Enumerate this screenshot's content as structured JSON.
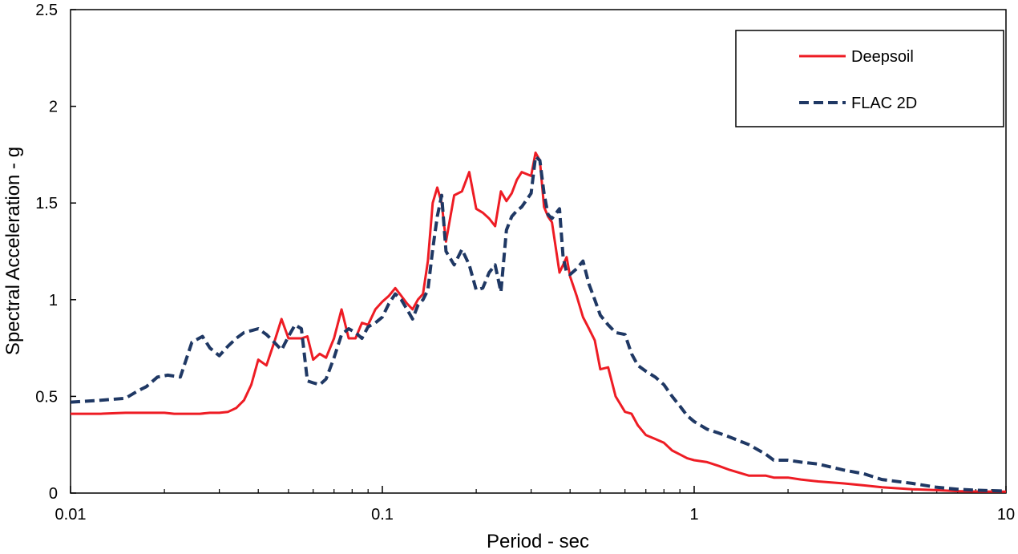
{
  "chart_data": {
    "type": "line",
    "title": "",
    "xlabel": "Period - sec",
    "ylabel": "Spectral Acceleration - g",
    "xscale": "log",
    "xlim": [
      0.01,
      10
    ],
    "ylim": [
      0,
      2.5
    ],
    "x_ticks": [
      0.01,
      0.1,
      1,
      10
    ],
    "x_tick_labels": [
      "0.01",
      "0.1",
      "1",
      "10"
    ],
    "y_ticks": [
      0,
      0.5,
      1,
      1.5,
      2,
      2.5
    ],
    "y_tick_labels": [
      "0",
      "0.5",
      "1",
      "1.5",
      "2",
      "2.5"
    ],
    "grid": false,
    "legend_position": "top-right",
    "series": [
      {
        "name": "Deepsoil",
        "color": "#ee1c24",
        "style": "solid",
        "x": [
          0.01,
          0.0125,
          0.015,
          0.0175,
          0.02,
          0.0215,
          0.023,
          0.0245,
          0.026,
          0.028,
          0.03,
          0.032,
          0.034,
          0.036,
          0.038,
          0.04,
          0.0425,
          0.045,
          0.0475,
          0.05,
          0.0525,
          0.055,
          0.0575,
          0.06,
          0.063,
          0.066,
          0.07,
          0.074,
          0.078,
          0.082,
          0.086,
          0.09,
          0.095,
          0.1,
          0.105,
          0.11,
          0.115,
          0.12,
          0.125,
          0.13,
          0.135,
          0.14,
          0.145,
          0.15,
          0.155,
          0.16,
          0.17,
          0.18,
          0.19,
          0.2,
          0.21,
          0.22,
          0.23,
          0.24,
          0.25,
          0.26,
          0.27,
          0.28,
          0.3,
          0.31,
          0.32,
          0.33,
          0.34,
          0.35,
          0.37,
          0.38,
          0.39,
          0.4,
          0.42,
          0.44,
          0.46,
          0.48,
          0.5,
          0.53,
          0.56,
          0.6,
          0.63,
          0.66,
          0.7,
          0.75,
          0.8,
          0.85,
          0.9,
          0.95,
          1.0,
          1.1,
          1.2,
          1.3,
          1.5,
          1.7,
          1.8,
          2.0,
          2.2,
          2.5,
          3.0,
          3.5,
          4.0,
          5.0,
          6.0,
          7.0,
          8.0,
          10.0
        ],
        "y": [
          0.41,
          0.41,
          0.415,
          0.415,
          0.415,
          0.41,
          0.41,
          0.41,
          0.41,
          0.415,
          0.415,
          0.42,
          0.44,
          0.48,
          0.56,
          0.69,
          0.66,
          0.78,
          0.9,
          0.8,
          0.8,
          0.8,
          0.81,
          0.69,
          0.72,
          0.7,
          0.8,
          0.95,
          0.8,
          0.8,
          0.88,
          0.87,
          0.95,
          0.99,
          1.02,
          1.06,
          1.02,
          0.98,
          0.95,
          1.0,
          1.03,
          1.2,
          1.5,
          1.58,
          1.5,
          1.3,
          1.54,
          1.56,
          1.66,
          1.47,
          1.45,
          1.42,
          1.38,
          1.56,
          1.51,
          1.55,
          1.62,
          1.66,
          1.64,
          1.76,
          1.72,
          1.48,
          1.43,
          1.4,
          1.14,
          1.18,
          1.22,
          1.12,
          1.02,
          0.91,
          0.85,
          0.79,
          0.64,
          0.65,
          0.5,
          0.42,
          0.41,
          0.35,
          0.3,
          0.28,
          0.26,
          0.22,
          0.2,
          0.18,
          0.17,
          0.16,
          0.14,
          0.12,
          0.09,
          0.09,
          0.08,
          0.08,
          0.07,
          0.06,
          0.05,
          0.04,
          0.03,
          0.02,
          0.015,
          0.01,
          0.008,
          0.007
        ]
      },
      {
        "name": "FLAC 2D",
        "color": "#1f3864",
        "style": "dashed",
        "x": [
          0.01,
          0.0125,
          0.015,
          0.0165,
          0.0175,
          0.019,
          0.0205,
          0.0225,
          0.0245,
          0.0265,
          0.028,
          0.03,
          0.032,
          0.034,
          0.036,
          0.038,
          0.04,
          0.0425,
          0.045,
          0.0475,
          0.05,
          0.0525,
          0.055,
          0.0575,
          0.06,
          0.063,
          0.066,
          0.07,
          0.074,
          0.078,
          0.082,
          0.086,
          0.09,
          0.095,
          0.1,
          0.105,
          0.11,
          0.115,
          0.12,
          0.125,
          0.13,
          0.135,
          0.14,
          0.145,
          0.15,
          0.155,
          0.16,
          0.17,
          0.18,
          0.19,
          0.2,
          0.21,
          0.22,
          0.23,
          0.24,
          0.25,
          0.26,
          0.27,
          0.28,
          0.3,
          0.31,
          0.32,
          0.33,
          0.34,
          0.35,
          0.37,
          0.38,
          0.39,
          0.4,
          0.42,
          0.44,
          0.46,
          0.48,
          0.5,
          0.53,
          0.56,
          0.6,
          0.63,
          0.66,
          0.7,
          0.75,
          0.8,
          0.85,
          0.9,
          0.95,
          1.0,
          1.1,
          1.2,
          1.3,
          1.5,
          1.7,
          1.8,
          2.0,
          2.2,
          2.5,
          3.0,
          3.5,
          4.0,
          5.0,
          6.0,
          7.0,
          8.0,
          10.0
        ],
        "y": [
          0.47,
          0.48,
          0.49,
          0.53,
          0.55,
          0.6,
          0.61,
          0.6,
          0.78,
          0.81,
          0.75,
          0.71,
          0.76,
          0.8,
          0.83,
          0.84,
          0.85,
          0.82,
          0.78,
          0.74,
          0.81,
          0.87,
          0.85,
          0.58,
          0.57,
          0.56,
          0.59,
          0.7,
          0.82,
          0.85,
          0.83,
          0.8,
          0.86,
          0.88,
          0.91,
          0.98,
          1.03,
          1.0,
          0.95,
          0.9,
          0.97,
          1.0,
          1.05,
          1.26,
          1.43,
          1.54,
          1.25,
          1.18,
          1.26,
          1.18,
          1.05,
          1.06,
          1.14,
          1.18,
          1.04,
          1.36,
          1.43,
          1.46,
          1.48,
          1.55,
          1.74,
          1.72,
          1.55,
          1.44,
          1.42,
          1.47,
          1.22,
          1.14,
          1.13,
          1.16,
          1.2,
          1.08,
          1.0,
          0.92,
          0.87,
          0.83,
          0.82,
          0.72,
          0.66,
          0.63,
          0.6,
          0.56,
          0.5,
          0.45,
          0.4,
          0.37,
          0.33,
          0.31,
          0.29,
          0.25,
          0.2,
          0.17,
          0.17,
          0.16,
          0.15,
          0.12,
          0.1,
          0.07,
          0.05,
          0.03,
          0.02,
          0.015,
          0.01
        ]
      }
    ]
  }
}
